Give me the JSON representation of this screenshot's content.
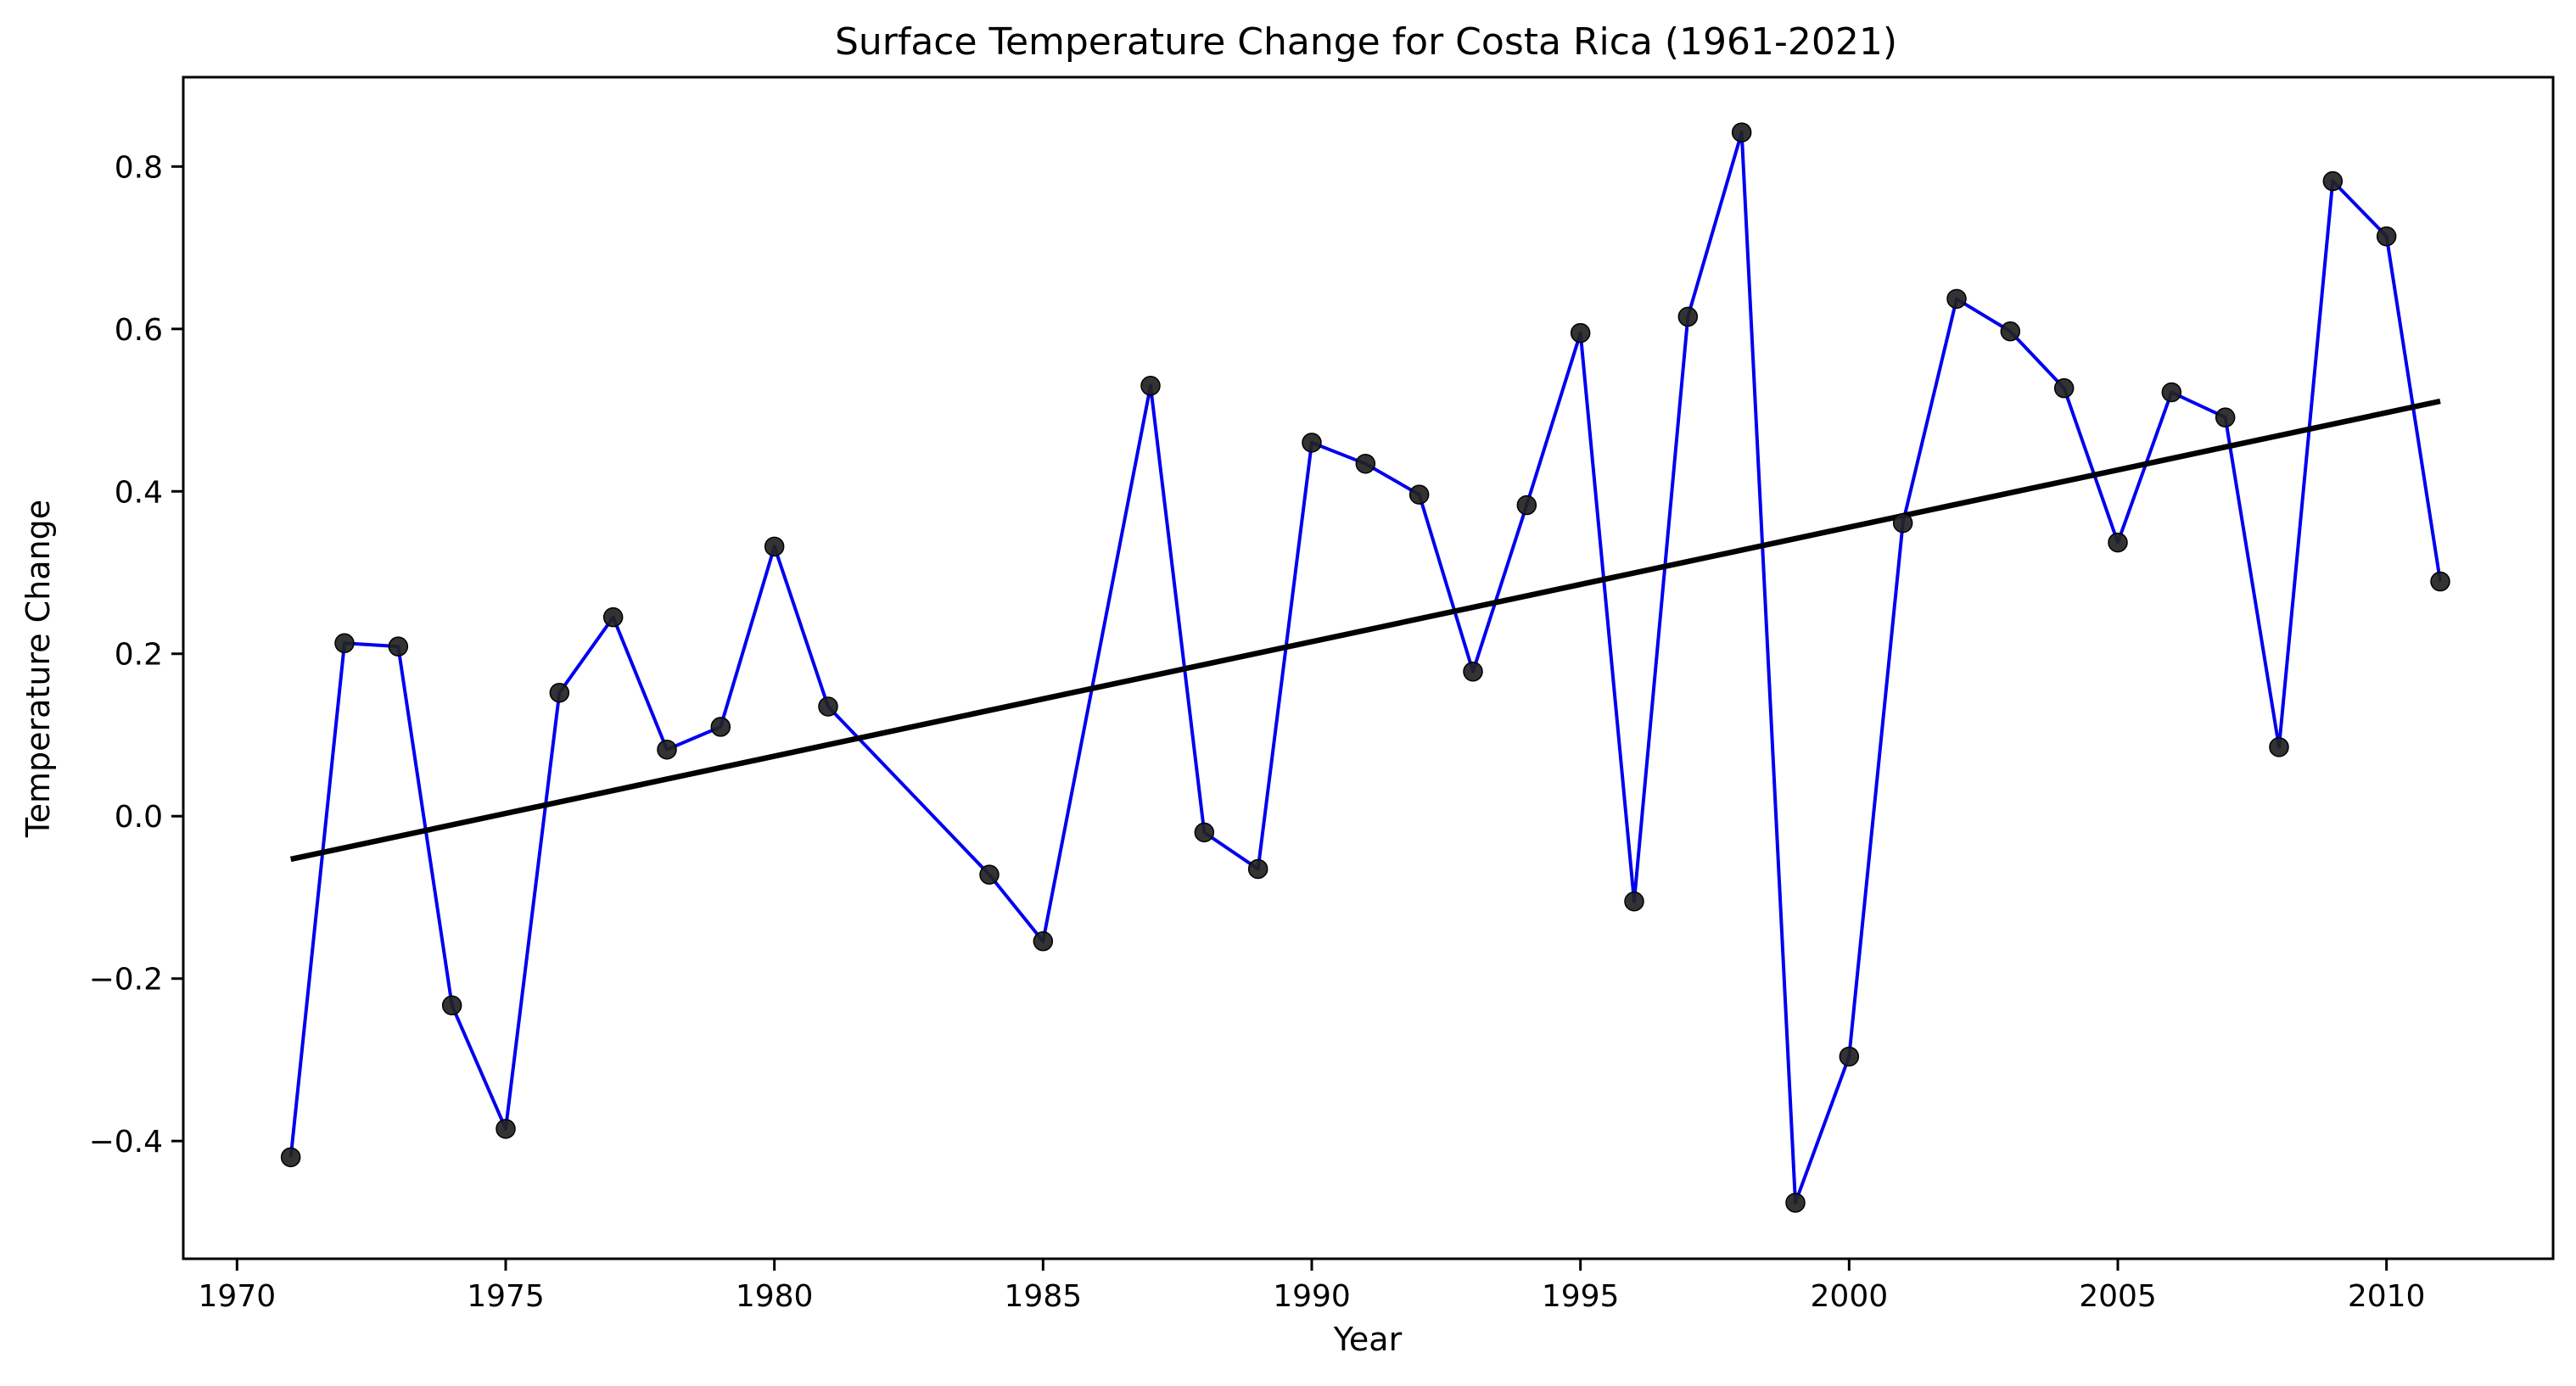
{
  "chart_data": {
    "type": "line",
    "title": "Surface Temperature Change for Costa Rica (1961-2021)",
    "xlabel": "Year",
    "ylabel": "Temperature Change",
    "xlim": [
      1969.0,
      2013.1
    ],
    "ylim": [
      -0.545,
      0.91
    ],
    "xticks": [
      1970,
      1975,
      1980,
      1985,
      1990,
      1995,
      2000,
      2005,
      2010
    ],
    "yticks": [
      -0.4,
      -0.2,
      0.0,
      0.2,
      0.4,
      0.6,
      0.8
    ],
    "ytick_labels": [
      "−0.4",
      "−0.2",
      "0.0",
      "0.2",
      "0.4",
      "0.6",
      "0.8"
    ],
    "grid": false,
    "series": [
      {
        "color": "#0000ee",
        "marker_color": "#222222",
        "x": [
          1971,
          1972,
          1973,
          1974,
          1975,
          1976,
          1977,
          1978,
          1979,
          1980,
          1981,
          1984,
          1985,
          1987,
          1988,
          1989,
          1990,
          1991,
          1992,
          1993,
          1994,
          1995,
          1996,
          1997,
          1998,
          1999,
          2000,
          2001,
          2002,
          2003,
          2004,
          2005,
          2006,
          2007,
          2008,
          2009,
          2010,
          2011
        ],
        "y": [
          -0.42,
          0.213,
          0.209,
          -0.233,
          -0.385,
          0.152,
          0.245,
          0.082,
          0.11,
          0.332,
          0.135,
          -0.072,
          -0.154,
          0.53,
          -0.02,
          -0.065,
          0.46,
          0.434,
          0.396,
          0.178,
          0.383,
          0.595,
          -0.105,
          0.615,
          0.842,
          -0.476,
          -0.296,
          0.361,
          0.637,
          0.597,
          0.527,
          0.337,
          0.522,
          0.491,
          0.085,
          0.782,
          0.714,
          0.289
        ]
      }
    ],
    "trendline": {
      "color": "#000000",
      "x": [
        1971,
        2011
      ],
      "y": [
        -0.053,
        0.511
      ]
    }
  }
}
